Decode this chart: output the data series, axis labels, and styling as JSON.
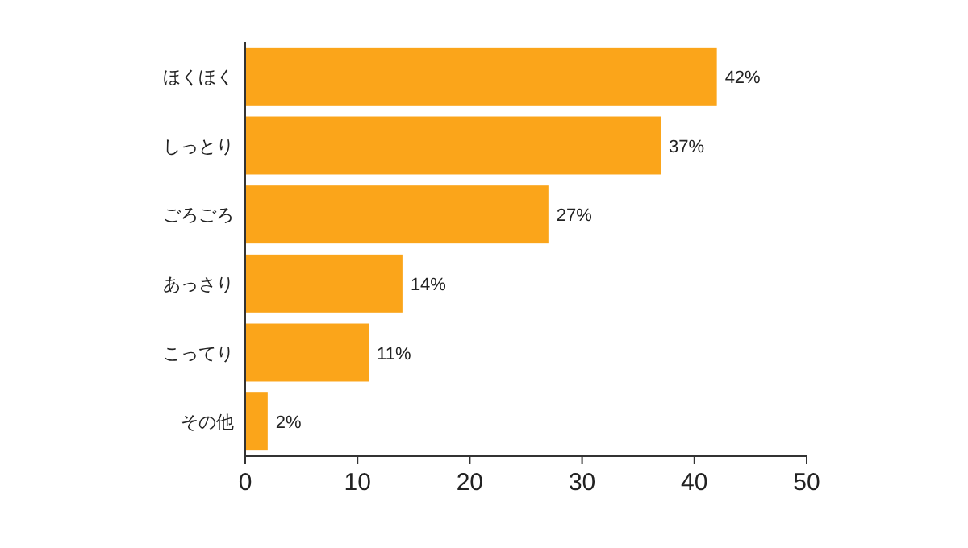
{
  "chart_data": {
    "type": "bar",
    "orientation": "horizontal",
    "categories": [
      "ほくほく",
      "しっとり",
      "ごろごろ",
      "あっさり",
      "こってり",
      "その他"
    ],
    "values": [
      42,
      37,
      27,
      14,
      11,
      2
    ],
    "value_labels": [
      "42%",
      "37%",
      "27%",
      "14%",
      "11%",
      "2%"
    ],
    "color": "#fba51a",
    "xlim": [
      0,
      50
    ],
    "xticks": [
      0,
      10,
      20,
      30,
      40,
      50
    ]
  }
}
